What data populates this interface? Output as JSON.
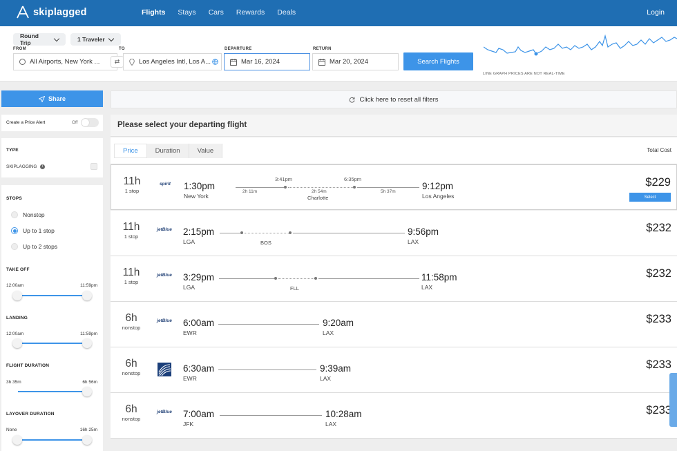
{
  "brand": {
    "name": "skiplagged"
  },
  "nav": {
    "items": [
      "Flights",
      "Stays",
      "Cars",
      "Rewards",
      "Deals"
    ],
    "login": "Login"
  },
  "search": {
    "trip_type": "Round Trip",
    "travelers": "1 Traveler",
    "from_label": "FROM",
    "to_label": "TO",
    "departure_label": "DEPARTURE",
    "return_label": "RETURN",
    "from_value": "All Airports, New York ...",
    "to_value": "Los Angeles Intl, Los A...",
    "departure_value": "Mar 16, 2024",
    "return_value": "Mar 20, 2024",
    "button": "Search Flights",
    "graph_note": "LINE GRAPH PRICES ARE NOT REAL-TIME"
  },
  "sidebar": {
    "share": "Share",
    "price_alert": "Create a Price Alert",
    "price_alert_state": "Off",
    "type_title": "TYPE",
    "skiplagging": "SKIPLAGGING",
    "stops_title": "STOPS",
    "stops": [
      "Nonstop",
      "Up to 1 stop",
      "Up to 2 stops"
    ],
    "stops_selected": "Up to 1 stop",
    "takeoff_title": "TAKE OFF",
    "takeoff_min": "12:00am",
    "takeoff_max": "11:59pm",
    "landing_title": "LANDING",
    "landing_min": "12:00am",
    "landing_max": "11:59pm",
    "duration_title": "FLIGHT DURATION",
    "duration_min": "3h 35m",
    "duration_max": "6h 56m",
    "layover_title": "LAYOVER DURATION",
    "layover_min": "None",
    "layover_max": "16h 25m"
  },
  "main": {
    "reset": "Click here to reset all filters",
    "heading": "Please select your departing flight",
    "sort_tabs": [
      "Price",
      "Duration",
      "Value"
    ],
    "total_cost": "Total Cost",
    "select_label": "Select"
  },
  "flights": [
    {
      "duration": "11h",
      "stops": "1 stop",
      "airline": "spirit",
      "dep_time": "1:30pm",
      "dep": "New York",
      "arr_time": "9:12pm",
      "arr": "Los Angeles",
      "price": "$229",
      "layover_city": "Charlotte",
      "seg1": "2h 11m",
      "mid_dep": "3:41pm",
      "lay": "2h 54m",
      "mid_arr": "6:35pm",
      "seg2": "5h 37m"
    },
    {
      "duration": "11h",
      "stops": "1 stop",
      "airline": "jetBlue",
      "dep_time": "2:15pm",
      "dep": "LGA",
      "arr_time": "9:56pm",
      "arr": "LAX",
      "price": "$232",
      "layover_city": "BOS"
    },
    {
      "duration": "11h",
      "stops": "1 stop",
      "airline": "jetBlue",
      "dep_time": "3:29pm",
      "dep": "LGA",
      "arr_time": "11:58pm",
      "arr": "LAX",
      "price": "$232",
      "layover_city": "FLL"
    },
    {
      "duration": "6h",
      "stops": "nonstop",
      "airline": "jetBlue",
      "dep_time": "6:00am",
      "dep": "EWR",
      "arr_time": "9:20am",
      "arr": "LAX",
      "price": "$233"
    },
    {
      "duration": "6h",
      "stops": "nonstop",
      "airline": "united-globe-icon",
      "dep_time": "6:30am",
      "dep": "EWR",
      "arr_time": "9:39am",
      "arr": "LAX",
      "price": "$233"
    },
    {
      "duration": "6h",
      "stops": "nonstop",
      "airline": "jetBlue",
      "dep_time": "7:00am",
      "dep": "JFK",
      "arr_time": "10:28am",
      "arr": "LAX",
      "price": "$233"
    }
  ],
  "colors": {
    "brand_blue": "#1f6eb3",
    "button_blue": "#3d94e8"
  }
}
